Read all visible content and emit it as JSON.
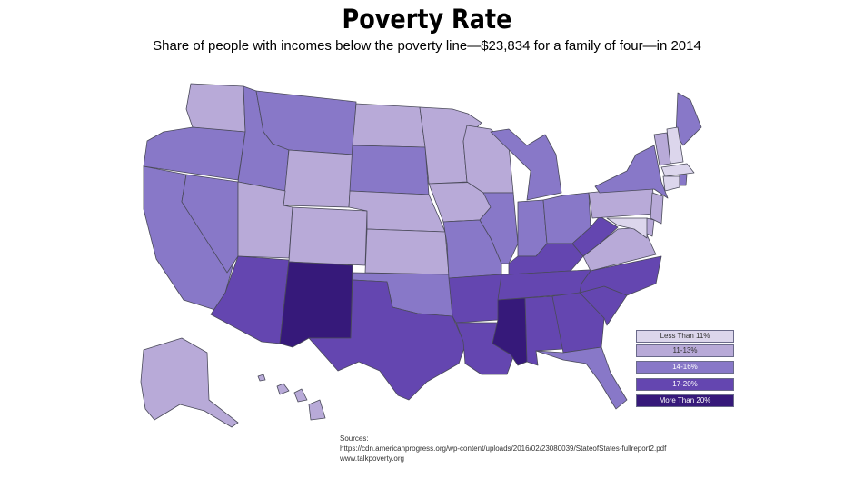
{
  "header": {
    "title": "Poverty Rate",
    "subtitle": "Share of people with incomes below the poverty line—$23,834 for a family of four—in 2014"
  },
  "colors": {
    "lt11": "#dcd6ec",
    "r11_13": "#b8aad8",
    "r14_16": "#8878c8",
    "r17_20": "#6446b0",
    "gt20": "#36197a"
  },
  "legend": {
    "items": [
      {
        "label": "Less Than 11%",
        "color": "#dcd6ec",
        "text_color": "#333333"
      },
      {
        "label": "11-13%",
        "color": "#b8aad8",
        "text_color": "#333333"
      },
      {
        "label": "14-16%",
        "color": "#8878c8",
        "text_color": "#ffffff"
      },
      {
        "label": "17-20%",
        "color": "#6446b0",
        "text_color": "#ffffff"
      },
      {
        "label": "More Than 20%",
        "color": "#36197a",
        "text_color": "#ffffff"
      }
    ]
  },
  "sources": {
    "label": "Sources:",
    "line1": "https://cdn.americanprogress.org/wp-content/uploads/2016/02/23080039/StateofStates-fullreport2.pdf",
    "line2": "www.talkpoverty.org"
  },
  "states": {
    "WA": "r11_13",
    "OR": "r14_16",
    "CA": "r14_16",
    "NV": "r14_16",
    "ID": "r14_16",
    "MT": "r14_16",
    "WY": "r11_13",
    "UT": "r11_13",
    "CO": "r11_13",
    "AZ": "r17_20",
    "NM": "gt20",
    "ND": "r11_13",
    "SD": "r14_16",
    "NE": "r11_13",
    "KS": "r11_13",
    "OK": "r14_16",
    "TX": "r17_20",
    "MN": "r11_13",
    "IA": "r11_13",
    "MO": "r14_16",
    "AR": "r17_20",
    "LA": "r17_20",
    "WI": "r11_13",
    "IL": "r14_16",
    "MS": "gt20",
    "MI": "r14_16",
    "IN": "r14_16",
    "OH": "r14_16",
    "KY": "r17_20",
    "TN": "r17_20",
    "AL": "r17_20",
    "GA": "r17_20",
    "FL": "r14_16",
    "SC": "r17_20",
    "NC": "r17_20",
    "VA": "r11_13",
    "WV": "r17_20",
    "PA": "r11_13",
    "NY": "r14_16",
    "ME": "r14_16",
    "NH": "lt11",
    "VT": "r11_13",
    "MA": "lt11",
    "CT": "lt11",
    "RI": "r14_16",
    "NJ": "r11_13",
    "DE": "r11_13",
    "MD": "lt11",
    "AK": "r11_13",
    "HI": "r11_13"
  }
}
